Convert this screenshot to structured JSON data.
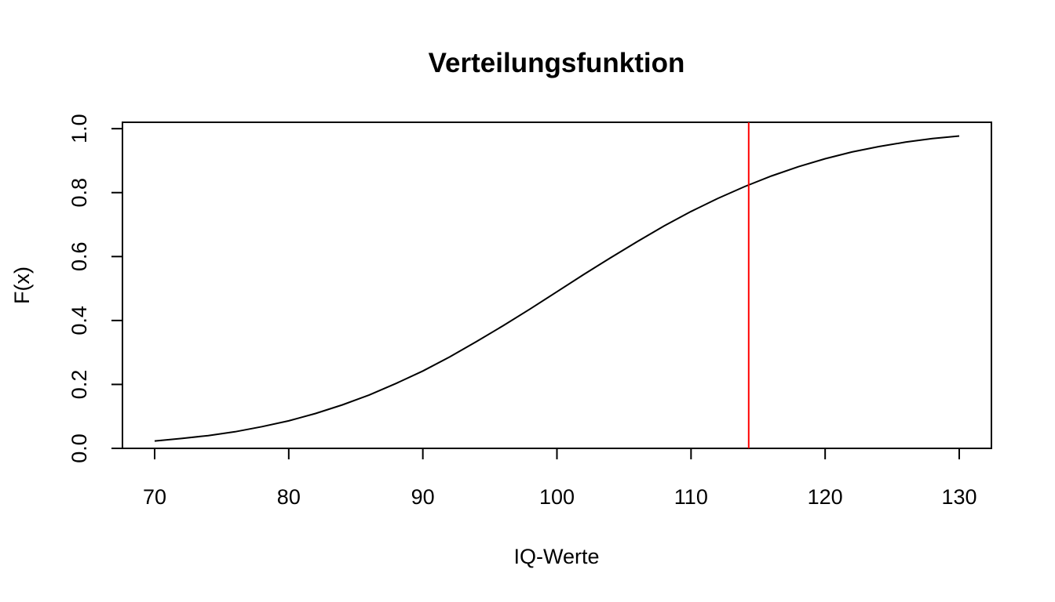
{
  "chart_data": {
    "type": "line",
    "title": "Verteilungsfunktion",
    "xlabel": "IQ-Werte",
    "ylabel": "F(x)",
    "xlim": [
      67.6,
      132.4
    ],
    "ylim": [
      0.0,
      1.02
    ],
    "x_ticks": [
      "70",
      "80",
      "90",
      "100",
      "110",
      "120",
      "130"
    ],
    "y_ticks": [
      "0.0",
      "0.2",
      "0.4",
      "0.6",
      "0.8",
      "1.0"
    ],
    "grid": false,
    "line_color": "#000000",
    "reference_line": {
      "orientation": "vertical",
      "x": 114.3,
      "color": "#ff0000"
    },
    "series": [
      {
        "x": [
          70,
          72,
          74,
          76,
          78,
          80,
          82,
          84,
          86,
          88,
          90,
          92,
          94,
          96,
          98,
          100,
          102,
          104,
          106,
          108,
          110,
          112,
          114,
          116,
          118,
          120,
          122,
          124,
          126,
          128,
          130
        ],
        "values": [
          0.023,
          0.031,
          0.04,
          0.052,
          0.068,
          0.086,
          0.109,
          0.136,
          0.167,
          0.203,
          0.242,
          0.286,
          0.334,
          0.384,
          0.436,
          0.49,
          0.544,
          0.596,
          0.647,
          0.696,
          0.741,
          0.782,
          0.819,
          0.852,
          0.881,
          0.906,
          0.927,
          0.944,
          0.958,
          0.969,
          0.977
        ]
      }
    ]
  }
}
